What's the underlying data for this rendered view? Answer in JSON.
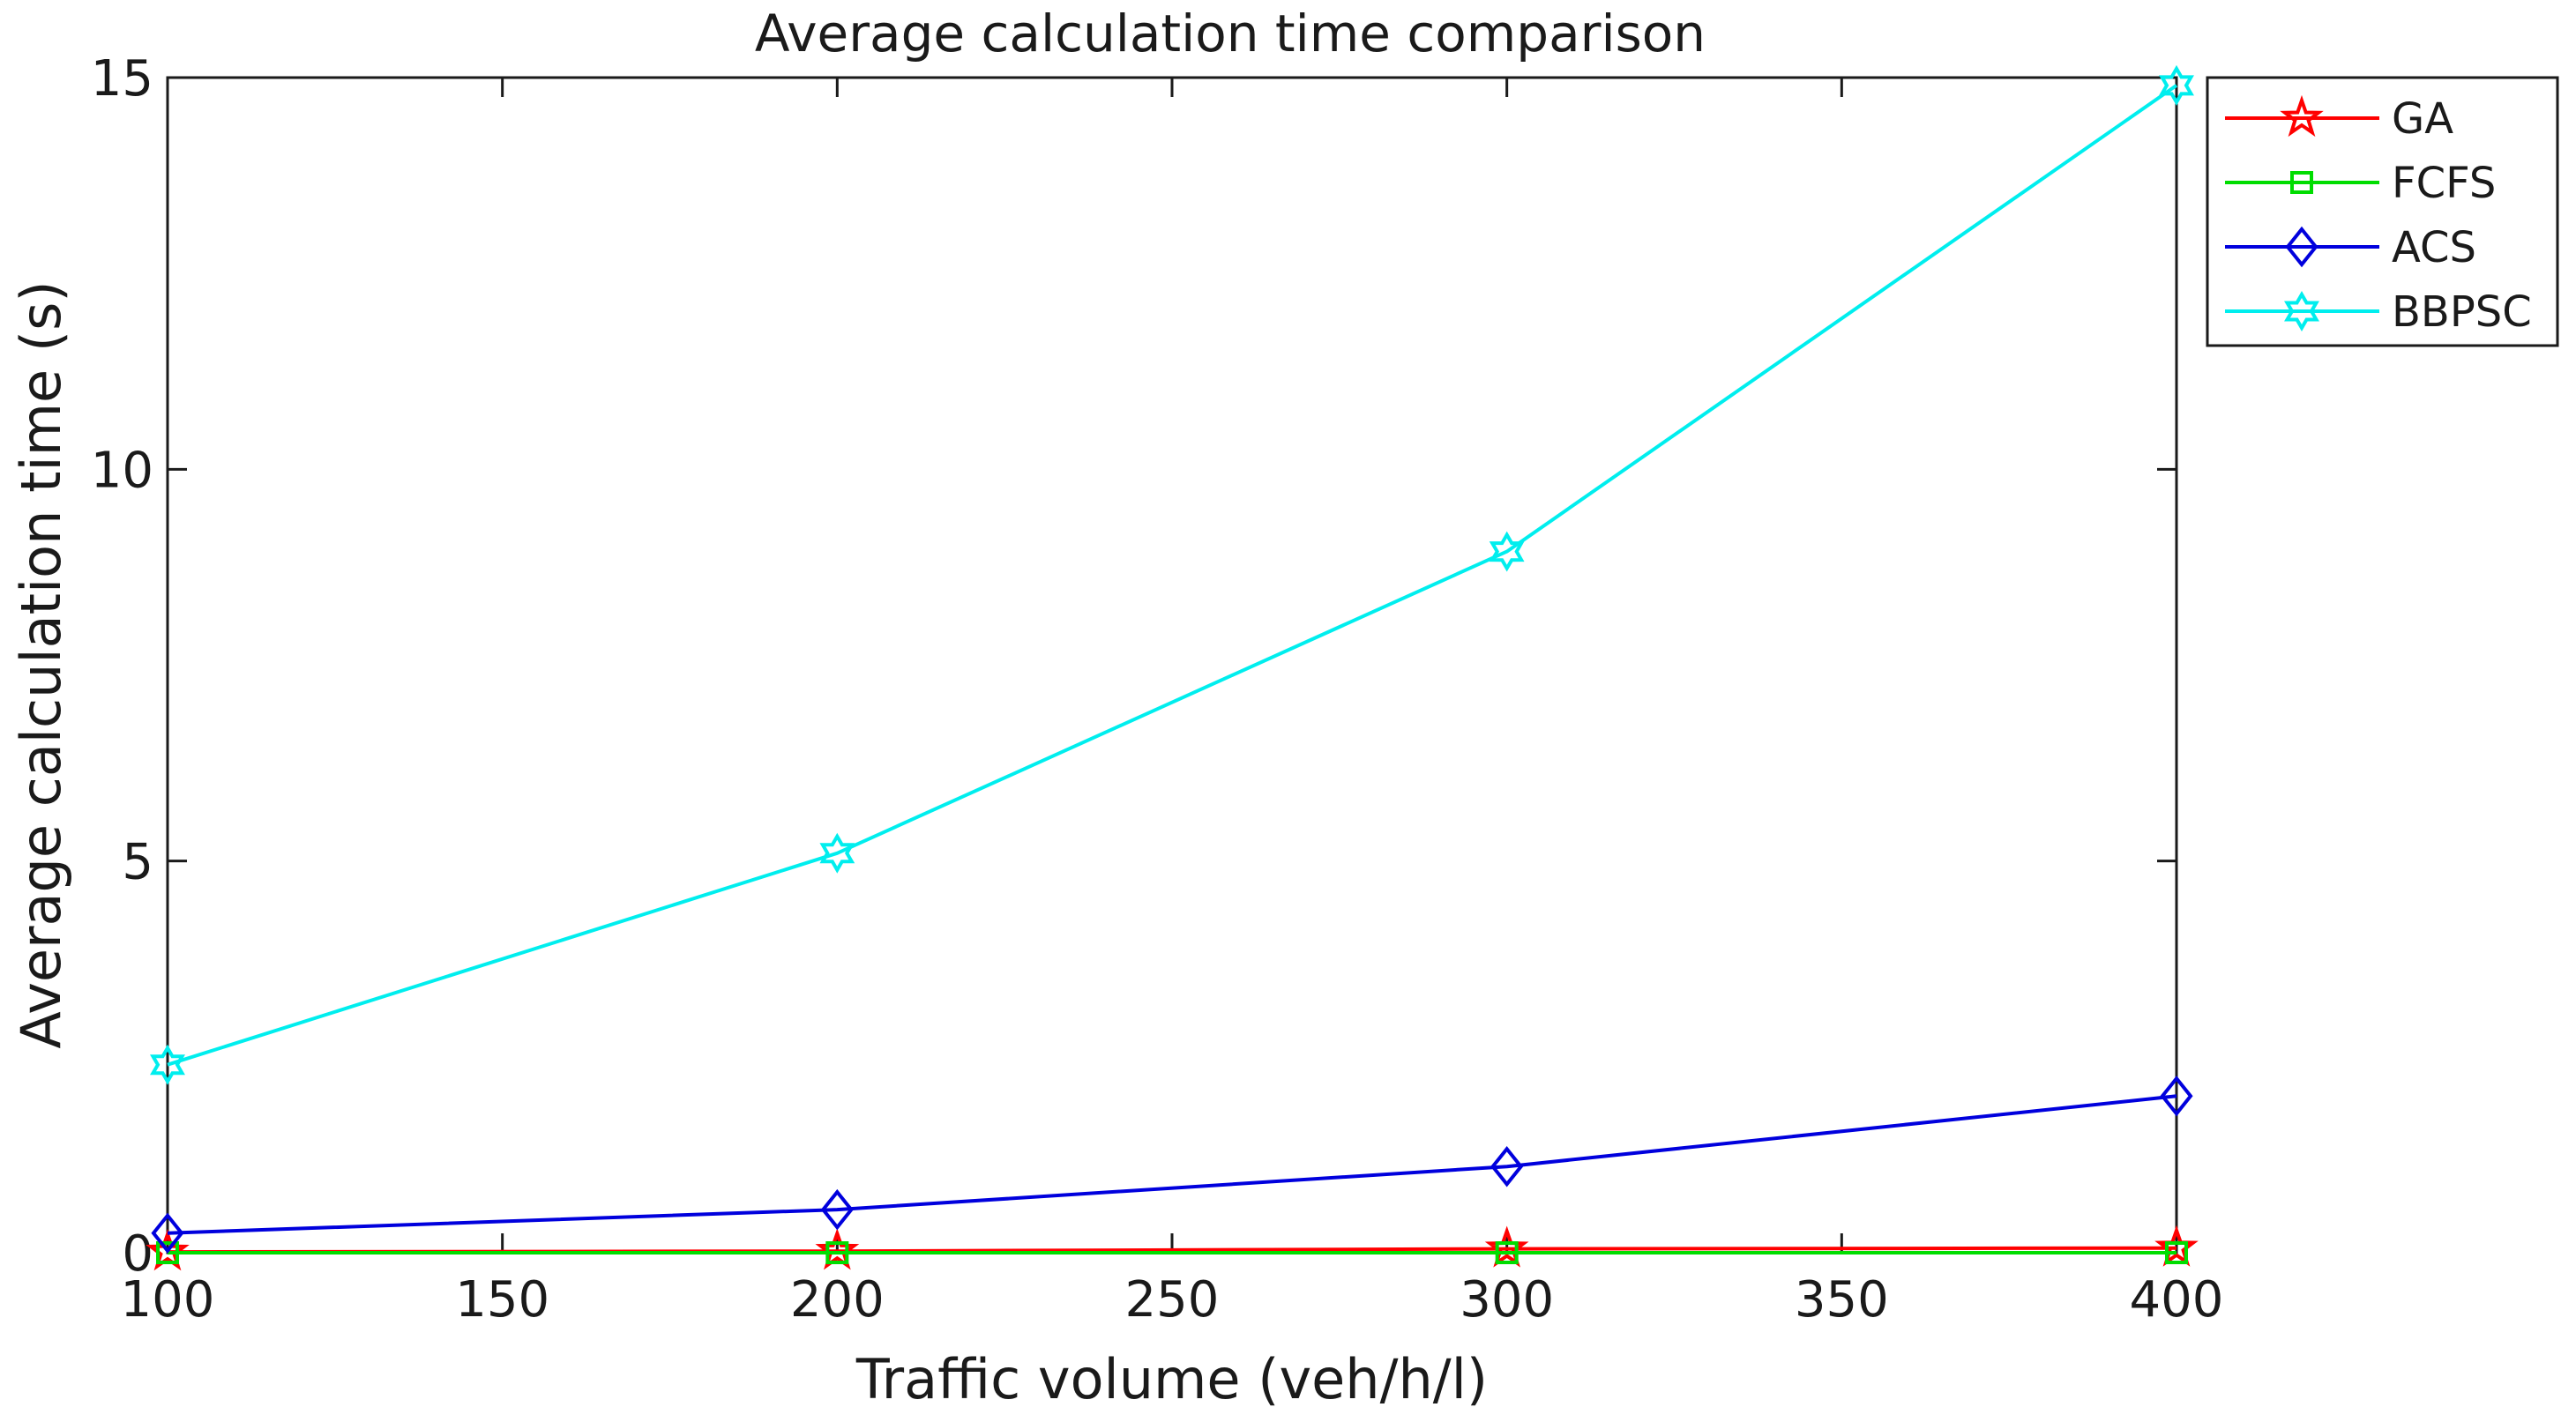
{
  "chart_data": {
    "type": "line",
    "title": "Average calculation time comparison",
    "xlabel": "Traffic volume (veh/h/l)",
    "ylabel": "Average calculation time (s)",
    "xlim": [
      100,
      400
    ],
    "ylim": [
      0,
      15
    ],
    "xticks": [
      100,
      150,
      200,
      250,
      300,
      350,
      400
    ],
    "yticks": [
      0,
      5,
      10,
      15
    ],
    "grid": false,
    "legend_position": "top-right",
    "x": [
      100,
      200,
      300,
      400
    ],
    "series": [
      {
        "name": "GA",
        "values": [
          0.01,
          0.02,
          0.05,
          0.06
        ],
        "color": "#ff0000",
        "marker": "pentagram"
      },
      {
        "name": "FCFS",
        "values": [
          0.0,
          0.0,
          0.0,
          0.0
        ],
        "color": "#00dd00",
        "marker": "square"
      },
      {
        "name": "ACS",
        "values": [
          0.25,
          0.55,
          1.1,
          2.0
        ],
        "color": "#0000dd",
        "marker": "diamond"
      },
      {
        "name": "BBPSC",
        "values": [
          2.4,
          5.1,
          8.95,
          14.9
        ],
        "color": "#00eeee",
        "marker": "hexagram"
      }
    ]
  }
}
